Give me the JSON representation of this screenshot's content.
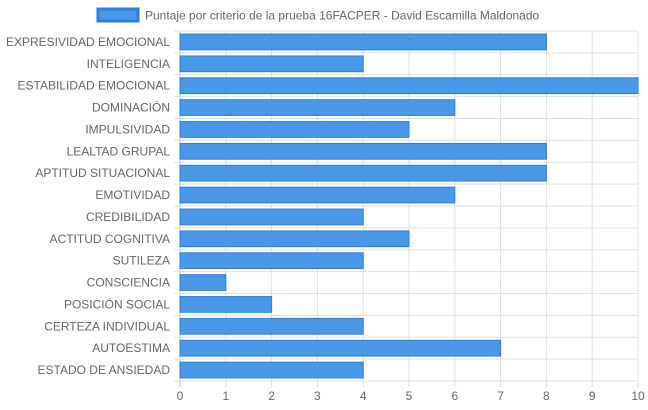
{
  "chart_data": {
    "type": "bar",
    "orientation": "horizontal",
    "categories": [
      "EXPRESIVIDAD EMOCIONAL",
      "INTELIGENCIA",
      "ESTABILIDAD EMOCIONAL",
      "DOMINACIÓN",
      "IMPULSIVIDAD",
      "LEALTAD GRUPAL",
      "APTITUD SITUACIONAL",
      "EMOTIVIDAD",
      "CREDIBILIDAD",
      "ACTITUD COGNITIVA",
      "SUTILEZA",
      "CONSCIENCIA",
      "POSICIÓN SOCIAL",
      "CERTEZA INDIVIDUAL",
      "AUTOESTIMA",
      "ESTADO DE ANSIEDAD"
    ],
    "series": [
      {
        "name": "Puntaje por criterio de la prueba 16FACPER - David Escamilla Maldonado",
        "values": [
          8,
          4,
          10,
          6,
          5,
          8,
          8,
          6,
          4,
          5,
          4,
          1,
          2,
          4,
          7,
          4
        ],
        "color": "#4a98e8",
        "border_color": "#2c7fdf"
      }
    ],
    "xlim": [
      0,
      10
    ],
    "xticks": [
      "0",
      "1",
      "2",
      "3",
      "4",
      "5",
      "6",
      "7",
      "8",
      "9",
      "10"
    ],
    "grid": true,
    "legend": "top-center",
    "title": "",
    "xlabel": "",
    "ylabel": ""
  }
}
